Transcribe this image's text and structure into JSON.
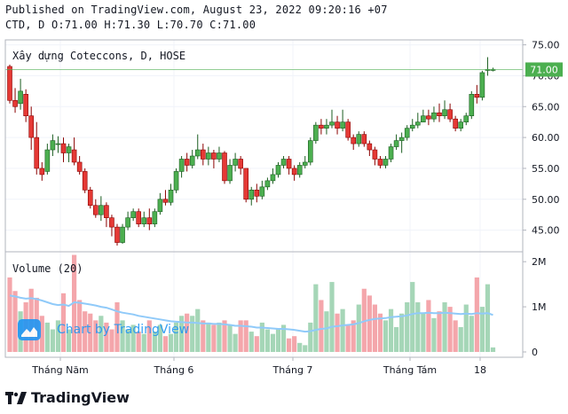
{
  "header": {
    "published": "Published on TradingView.com, August 23, 2022 09:20:16 +07",
    "ohlc": "CTD, D O:71.00 H:71.30 L:70.70 C:71.00"
  },
  "branding": {
    "footer": "TradingView",
    "watermark": "Chart by TradingView"
  },
  "colors": {
    "up": "#26a69a",
    "down": "#ef5350",
    "up_fill": "#4caf50",
    "down_fill": "#e53935",
    "vol_up": "#a5d6b7",
    "vol_down": "#f4a6ab",
    "vol_ma": "#90caf9",
    "last_price": "#4caf50"
  },
  "chart_data": {
    "type": "candlestick",
    "title": "Xây dựng Coteccons, D, HOSE",
    "symbol": "CTD",
    "last_price_label": "71.00",
    "price_axis": {
      "ticks": [
        "75.00",
        "70.00",
        "65.00",
        "60.00",
        "55.00",
        "50.00",
        "45.00"
      ],
      "ylim": [
        41.5,
        75.8
      ]
    },
    "volume_panel": {
      "label": "Volume (20)",
      "ticks": [
        "2M",
        "1M",
        "0"
      ],
      "ylim": [
        0,
        2200000
      ]
    },
    "x_labels": [
      "Tháng Năm",
      "Tháng 6",
      "Tháng 7",
      "Tháng Tám",
      "18"
    ],
    "candles": [
      [
        71.5,
        66.0,
        71.8,
        65.5
      ],
      [
        66.0,
        65.0,
        68.0,
        64.0
      ],
      [
        65.5,
        67.5,
        69.5,
        64.5
      ],
      [
        67.0,
        63.5,
        67.8,
        62.5
      ],
      [
        63.5,
        60.0,
        65.0,
        58.0
      ],
      [
        60.0,
        55.0,
        62.5,
        54.0
      ],
      [
        55.0,
        54.0,
        56.0,
        53.0
      ],
      [
        54.5,
        58.0,
        59.0,
        54.0
      ],
      [
        58.0,
        59.5,
        60.5,
        57.0
      ],
      [
        59.0,
        59.0,
        60.2,
        57.5
      ],
      [
        59.0,
        57.5,
        60.0,
        56.0
      ],
      [
        57.5,
        58.5,
        59.0,
        56.0
      ],
      [
        58.0,
        56.0,
        60.0,
        55.5
      ],
      [
        56.0,
        54.5,
        57.0,
        54.0
      ],
      [
        54.5,
        51.5,
        55.0,
        51.0
      ],
      [
        51.5,
        49.0,
        52.0,
        48.5
      ],
      [
        49.0,
        47.5,
        50.0,
        47.0
      ],
      [
        47.5,
        49.0,
        50.5,
        46.5
      ],
      [
        49.0,
        47.0,
        49.5,
        45.5
      ],
      [
        47.0,
        45.5,
        47.5,
        44.0
      ],
      [
        45.5,
        43.0,
        46.0,
        42.5
      ],
      [
        43.0,
        45.5,
        46.0,
        42.8
      ],
      [
        45.5,
        47.0,
        48.0,
        45.0
      ],
      [
        47.0,
        48.0,
        48.5,
        46.5
      ],
      [
        48.0,
        46.0,
        48.5,
        45.5
      ],
      [
        46.0,
        47.0,
        48.0,
        45.5
      ],
      [
        47.0,
        46.0,
        48.5,
        45.0
      ],
      [
        46.0,
        48.0,
        48.5,
        45.5
      ],
      [
        48.0,
        50.0,
        51.0,
        47.5
      ],
      [
        50.0,
        49.5,
        51.5,
        49.0
      ],
      [
        49.5,
        51.5,
        52.5,
        49.0
      ],
      [
        51.5,
        54.5,
        55.0,
        51.0
      ],
      [
        54.5,
        56.5,
        57.0,
        53.5
      ],
      [
        56.5,
        55.5,
        57.5,
        54.5
      ],
      [
        55.5,
        57.0,
        58.0,
        55.0
      ],
      [
        57.0,
        58.0,
        60.5,
        56.5
      ],
      [
        58.0,
        56.5,
        59.0,
        55.5
      ],
      [
        56.5,
        57.5,
        58.5,
        55.5
      ],
      [
        57.5,
        56.5,
        58.0,
        55.0
      ],
      [
        56.5,
        57.5,
        58.5,
        56.0
      ],
      [
        57.5,
        53.0,
        57.8,
        52.5
      ],
      [
        53.0,
        55.5,
        56.5,
        52.5
      ],
      [
        55.5,
        56.5,
        57.5,
        54.5
      ],
      [
        56.5,
        55.0,
        57.0,
        54.0
      ],
      [
        55.0,
        50.0,
        55.0,
        49.5
      ],
      [
        50.0,
        51.5,
        52.0,
        49.0
      ],
      [
        51.5,
        50.5,
        52.5,
        49.5
      ],
      [
        50.5,
        52.0,
        53.0,
        50.0
      ],
      [
        52.0,
        53.0,
        53.5,
        51.5
      ],
      [
        53.0,
        54.0,
        55.0,
        52.5
      ],
      [
        54.0,
        55.5,
        56.0,
        53.5
      ],
      [
        55.5,
        56.5,
        57.0,
        55.0
      ],
      [
        56.5,
        55.0,
        57.0,
        54.0
      ],
      [
        55.0,
        54.0,
        55.5,
        53.0
      ],
      [
        54.0,
        55.5,
        56.0,
        53.5
      ],
      [
        55.5,
        56.0,
        57.0,
        55.0
      ],
      [
        56.0,
        59.5,
        60.0,
        55.5
      ],
      [
        59.5,
        62.0,
        62.5,
        59.0
      ],
      [
        62.0,
        61.5,
        63.0,
        60.5
      ],
      [
        61.5,
        62.0,
        63.0,
        60.5
      ],
      [
        62.0,
        62.5,
        64.5,
        61.5
      ],
      [
        62.5,
        61.5,
        63.5,
        60.5
      ],
      [
        61.5,
        62.5,
        64.5,
        61.0
      ],
      [
        62.5,
        60.0,
        63.0,
        59.5
      ],
      [
        60.0,
        59.0,
        60.5,
        58.0
      ],
      [
        59.0,
        60.5,
        61.0,
        58.5
      ],
      [
        60.5,
        59.0,
        61.0,
        58.5
      ],
      [
        59.0,
        58.0,
        59.5,
        57.0
      ],
      [
        58.0,
        56.5,
        58.5,
        55.5
      ],
      [
        56.5,
        55.5,
        57.0,
        55.0
      ],
      [
        55.5,
        56.5,
        57.0,
        55.0
      ],
      [
        56.5,
        58.5,
        59.0,
        56.0
      ],
      [
        58.5,
        59.5,
        60.5,
        58.0
      ],
      [
        59.5,
        60.0,
        60.8,
        57.5
      ],
      [
        60.0,
        61.5,
        62.0,
        59.5
      ],
      [
        61.5,
        62.0,
        63.0,
        61.0
      ],
      [
        62.0,
        62.5,
        64.0,
        61.5
      ],
      [
        62.5,
        63.5,
        64.5,
        62.5
      ],
      [
        63.5,
        63.0,
        64.5,
        62.0
      ],
      [
        63.0,
        64.0,
        65.0,
        62.5
      ],
      [
        64.0,
        63.5,
        65.5,
        62.5
      ],
      [
        63.5,
        64.5,
        66.0,
        63.0
      ],
      [
        64.5,
        63.0,
        65.5,
        62.5
      ],
      [
        63.0,
        61.5,
        63.5,
        61.0
      ],
      [
        61.5,
        62.5,
        63.0,
        61.0
      ],
      [
        62.5,
        63.5,
        64.0,
        62.0
      ],
      [
        63.5,
        67.0,
        67.5,
        63.0
      ],
      [
        67.0,
        66.5,
        68.5,
        65.5
      ],
      [
        66.5,
        70.5,
        70.8,
        66.0
      ],
      [
        71.0,
        71.0,
        73.0,
        70.0
      ],
      [
        71.0,
        71.0,
        71.3,
        70.7
      ]
    ],
    "volume": [
      1650000,
      1350000,
      900000,
      1100000,
      1400000,
      1200000,
      800000,
      650000,
      500000,
      700000,
      1300000,
      500000,
      2150000,
      1150000,
      900000,
      850000,
      700000,
      800000,
      650000,
      500000,
      1100000,
      700000,
      500000,
      600000,
      450000,
      400000,
      700000,
      450000,
      600000,
      350000,
      400000,
      650000,
      800000,
      850000,
      800000,
      950000,
      700000,
      650000,
      600000,
      650000,
      700000,
      600000,
      400000,
      700000,
      700000,
      450000,
      350000,
      650000,
      500000,
      400000,
      500000,
      600000,
      300000,
      350000,
      200000,
      150000,
      650000,
      1500000,
      1150000,
      900000,
      1550000,
      850000,
      950000,
      600000,
      700000,
      1050000,
      1400000,
      1250000,
      1050000,
      850000,
      700000,
      950000,
      550000,
      850000,
      1100000,
      1550000,
      1100000,
      850000,
      1150000,
      750000,
      900000,
      1100000,
      1000000,
      700000,
      550000,
      1050000,
      800000,
      1650000,
      1000000,
      1500000,
      100000
    ],
    "volume_ma": [
      1250000,
      1230000,
      1200000,
      1180000,
      1190000,
      1170000,
      1140000,
      1100000,
      1060000,
      1040000,
      1050000,
      1020000,
      1100000,
      1090000,
      1070000,
      1050000,
      1030000,
      1000000,
      980000,
      940000,
      900000,
      870000,
      850000,
      830000,
      800000,
      780000,
      760000,
      740000,
      720000,
      700000,
      680000,
      670000,
      660000,
      650000,
      650000,
      640000,
      630000,
      630000,
      620000,
      620000,
      610000,
      600000,
      580000,
      580000,
      570000,
      560000,
      540000,
      540000,
      530000,
      520000,
      510000,
      510000,
      500000,
      490000,
      470000,
      450000,
      460000,
      490000,
      510000,
      520000,
      560000,
      570000,
      590000,
      600000,
      610000,
      640000,
      680000,
      710000,
      730000,
      740000,
      750000,
      770000,
      780000,
      790000,
      810000,
      840000,
      860000,
      860000,
      870000,
      860000,
      860000,
      870000,
      860000,
      850000,
      840000,
      850000,
      840000,
      860000,
      850000,
      860000,
      820000
    ]
  }
}
